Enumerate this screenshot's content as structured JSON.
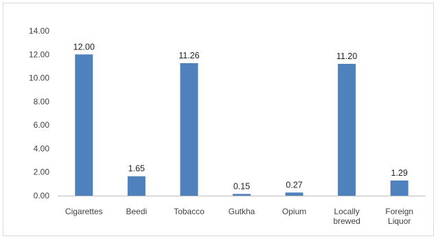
{
  "chart_data": {
    "type": "bar",
    "categories": [
      [
        "Cigarettes"
      ],
      [
        "Beedi"
      ],
      [
        "Tobacco"
      ],
      [
        "Gutkha"
      ],
      [
        "Opium"
      ],
      [
        "Locally",
        "brewed"
      ],
      [
        "Foreign",
        "Liquor"
      ]
    ],
    "values": [
      12.0,
      1.65,
      11.26,
      0.15,
      0.27,
      11.2,
      1.29
    ],
    "data_labels": [
      "12.00",
      "1.65",
      "11.26",
      "0.15",
      "0.27",
      "11.20",
      "1.29"
    ],
    "yticks": [
      "0.00",
      "2.00",
      "4.00",
      "6.00",
      "8.00",
      "10.00",
      "12.00",
      "14.00"
    ],
    "ylim": [
      0,
      14
    ],
    "title": "",
    "xlabel": "",
    "ylabel": "",
    "grid": false,
    "legend": "none",
    "bar_color": "#4f81bd"
  }
}
